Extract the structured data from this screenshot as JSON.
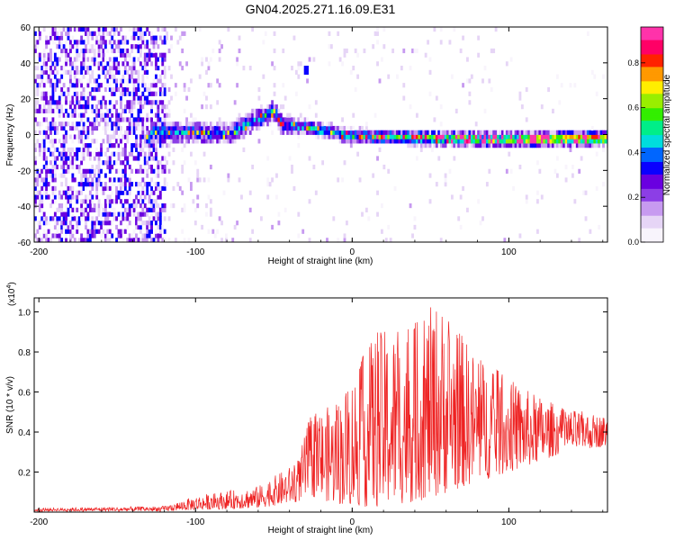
{
  "title": "GN04.2025.271.16.09.E31",
  "chart_data": [
    {
      "type": "heatmap",
      "xlabel": "Height of straight line (km)",
      "ylabel": "Frequency (Hz)",
      "xlim": [
        -203,
        163
      ],
      "ylim": [
        -60,
        60
      ],
      "xticks": [
        -200,
        -100,
        0,
        100
      ],
      "yticks": [
        -60,
        -40,
        -20,
        0,
        20,
        40,
        60
      ],
      "colorbar": {
        "label": "Normalized spectral amplitude",
        "range": [
          0,
          0.96
        ],
        "ticks": [
          "0.0",
          "0.2",
          "0.4",
          "0.6",
          "0.8"
        ],
        "tick_values": [
          0,
          0.2,
          0.4,
          0.6,
          0.8
        ],
        "colors": [
          "#f8f4fc",
          "#e6d5f6",
          "#c79af0",
          "#8c3ee6",
          "#6a00e0",
          "#0a00ff",
          "#0066ff",
          "#00dddd",
          "#00ee88",
          "#33ee00",
          "#99ee00",
          "#ffee00",
          "#ff9900",
          "#ff2200",
          "#ff0066",
          "#ff33aa"
        ]
      },
      "band_centerline": [
        {
          "x": -130,
          "f": 0
        },
        {
          "x": -100,
          "f": 0
        },
        {
          "x": -80,
          "f": -1
        },
        {
          "x": -60,
          "f": 8
        },
        {
          "x": -50,
          "f": 12
        },
        {
          "x": -45,
          "f": 4
        },
        {
          "x": -30,
          "f": 3
        },
        {
          "x": 0,
          "f": -2
        },
        {
          "x": 50,
          "f": -3
        },
        {
          "x": 100,
          "f": -4
        },
        {
          "x": 160,
          "f": -3
        }
      ]
    },
    {
      "type": "line",
      "xlabel": "Height of straight line (km)",
      "ylabel": "SNR (10 * v/v)",
      "yscale_label": "(x10",
      "yscale_exp": "4",
      "xlim": [
        -203,
        163
      ],
      "ylim": [
        0,
        1.07
      ],
      "xticks": [
        -200,
        -100,
        0,
        100
      ],
      "yticks": [
        0.2,
        0.4,
        0.6,
        0.8,
        1.0
      ],
      "ytick_labels": [
        "0.2",
        "0.4",
        "0.6",
        "0.8",
        "1.0"
      ],
      "color": "#ee2222",
      "envelope": [
        {
          "x": -203,
          "hi": 0.02,
          "lo": 0.005
        },
        {
          "x": -120,
          "hi": 0.03,
          "lo": 0.005
        },
        {
          "x": -100,
          "hi": 0.08,
          "lo": 0.01
        },
        {
          "x": -60,
          "hi": 0.13,
          "lo": 0.02
        },
        {
          "x": -35,
          "hi": 0.25,
          "lo": 0.05
        },
        {
          "x": -27,
          "hi": 0.48,
          "lo": 0.08
        },
        {
          "x": -10,
          "hi": 0.55,
          "lo": 0.04
        },
        {
          "x": 15,
          "hi": 0.9,
          "lo": 0.02
        },
        {
          "x": 40,
          "hi": 0.95,
          "lo": 0.05
        },
        {
          "x": 55,
          "hi": 1.06,
          "lo": 0.08
        },
        {
          "x": 80,
          "hi": 0.78,
          "lo": 0.15
        },
        {
          "x": 110,
          "hi": 0.62,
          "lo": 0.22
        },
        {
          "x": 135,
          "hi": 0.52,
          "lo": 0.3
        },
        {
          "x": 163,
          "hi": 0.48,
          "lo": 0.33
        }
      ]
    }
  ]
}
